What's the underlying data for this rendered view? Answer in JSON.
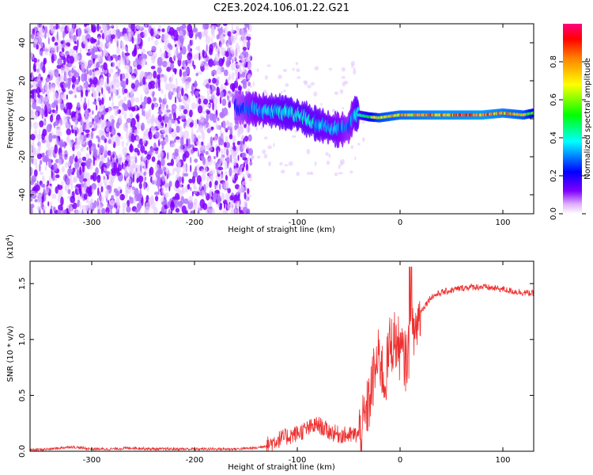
{
  "figure": {
    "title": "C2E3.2024.106.01.22.G21"
  },
  "chart_data": [
    {
      "type": "heatmap",
      "xlabel": "Height of straight line (km)",
      "ylabel": "Frequency (Hz)",
      "xlim": [
        -360,
        130
      ],
      "ylim": [
        -50,
        50
      ],
      "xticks": [
        -300,
        -200,
        -100,
        0,
        100
      ],
      "yticks": [
        -40,
        -20,
        0,
        20,
        40
      ],
      "colorbar": {
        "label": "Normalized spectral amplitude",
        "range": [
          0,
          1
        ],
        "ticks": [
          "0.0",
          "0.2",
          "0.4",
          "0.6",
          "0.8"
        ],
        "colormap": [
          "#ffffff",
          "#e0b0ff",
          "#8000ff",
          "#0000ff",
          "#00ffff",
          "#00ff00",
          "#ffff00",
          "#ff8000",
          "#ff0000",
          "#ff0080"
        ]
      },
      "ridge": {
        "x": [
          -160,
          -140,
          -120,
          -100,
          -80,
          -60,
          -50,
          -45,
          -40,
          -30,
          -20,
          0,
          40,
          80,
          100,
          120,
          130
        ],
        "freq": [
          6,
          5,
          4,
          2,
          -3,
          -6,
          -5,
          3,
          2,
          1,
          0.5,
          2,
          2,
          2,
          3,
          2,
          3
        ],
        "amplitude": [
          0.25,
          0.35,
          0.4,
          0.42,
          0.4,
          0.35,
          0.3,
          0.35,
          0.45,
          0.6,
          0.75,
          0.82,
          0.88,
          0.9,
          0.85,
          0.78,
          0.6
        ]
      },
      "noise_region_end_x": -155
    },
    {
      "type": "line",
      "xlabel": "Height of straight line (km)",
      "ylabel": "SNR (10 * v/v)",
      "yscale_label": "(x10",
      "yscale_exp": "4",
      "xlim": [
        -360,
        130
      ],
      "ylim": [
        0,
        1.7
      ],
      "xticks": [
        -300,
        -200,
        -100,
        0,
        100
      ],
      "yticks": [
        "0.0",
        "0.5",
        "1.0",
        "1.5"
      ],
      "color": "#ee3030",
      "series": [
        {
          "x": [
            -360,
            -340,
            -320,
            -300,
            -280,
            -260,
            -240,
            -220,
            -200,
            -180,
            -160,
            -140,
            -130,
            -120,
            -110,
            -100,
            -90,
            -80,
            -70,
            -60,
            -50,
            -40,
            -35,
            -30,
            -25,
            -20,
            -15,
            -10,
            -5,
            0,
            5,
            10,
            15,
            20,
            30,
            40,
            50,
            60,
            70,
            80,
            90,
            100,
            110,
            120,
            130
          ],
          "values": [
            0.01,
            0.02,
            0.04,
            0.02,
            0.02,
            0.03,
            0.02,
            0.02,
            0.02,
            0.02,
            0.02,
            0.03,
            0.05,
            0.1,
            0.13,
            0.16,
            0.2,
            0.24,
            0.18,
            0.15,
            0.14,
            0.15,
            0.25,
            0.45,
            0.7,
            0.85,
            0.6,
            0.95,
            1.0,
            0.9,
            0.8,
            0.95,
            1.1,
            1.25,
            1.38,
            1.42,
            1.44,
            1.46,
            1.47,
            1.47,
            1.46,
            1.45,
            1.43,
            1.42,
            1.41
          ]
        }
      ]
    }
  ]
}
